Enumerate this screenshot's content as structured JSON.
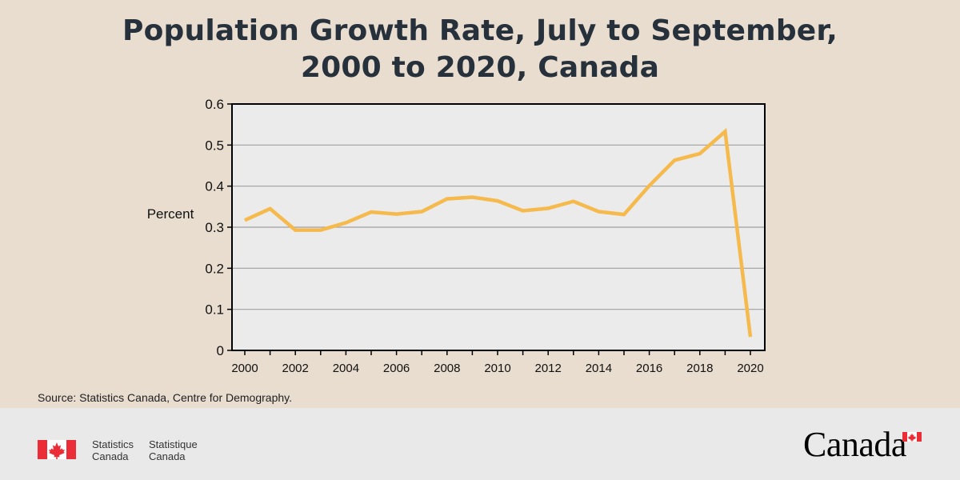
{
  "chart_data": {
    "type": "line",
    "title_line1": "Population Growth Rate, July to September,",
    "title_line2": "2000 to 2020, Canada",
    "ylabel": "Percent",
    "xlabel": "",
    "ylim": [
      0,
      0.6
    ],
    "y_ticks": [
      "0",
      "0.1",
      "0.2",
      "0.3",
      "0.4",
      "0.5",
      "0.6"
    ],
    "x_ticks": [
      "2000",
      "2002",
      "2004",
      "2006",
      "2008",
      "2010",
      "2012",
      "2014",
      "2016",
      "2018",
      "2020"
    ],
    "grid": true,
    "x": [
      2000,
      2001,
      2002,
      2003,
      2004,
      2005,
      2006,
      2007,
      2008,
      2009,
      2010,
      2011,
      2012,
      2013,
      2014,
      2015,
      2016,
      2017,
      2018,
      2019,
      2020
    ],
    "series": [
      {
        "values": [
          0.317,
          0.345,
          0.293,
          0.293,
          0.311,
          0.337,
          0.332,
          0.338,
          0.369,
          0.373,
          0.364,
          0.34,
          0.346,
          0.363,
          0.338,
          0.331,
          0.401,
          0.463,
          0.479,
          0.533,
          0.033
        ],
        "color": "#f5b94c"
      }
    ],
    "colors": {
      "plot_background": "#ebebeb",
      "grid": "#a0a0a0",
      "axis": "#000000",
      "line": "#f5b94c"
    }
  },
  "source_note": "Source: Statistics Canada, Centre for Demography.",
  "footer": {
    "org_en_line1": "Statistics",
    "org_en_line2": "Canada",
    "org_fr_line1": "Statistique",
    "org_fr_line2": "Canada",
    "wordmark": "Canada",
    "flag_icon": "canada-flag-icon",
    "flag_colors": {
      "red": "#eb2d37",
      "white": "#ffffff"
    }
  }
}
